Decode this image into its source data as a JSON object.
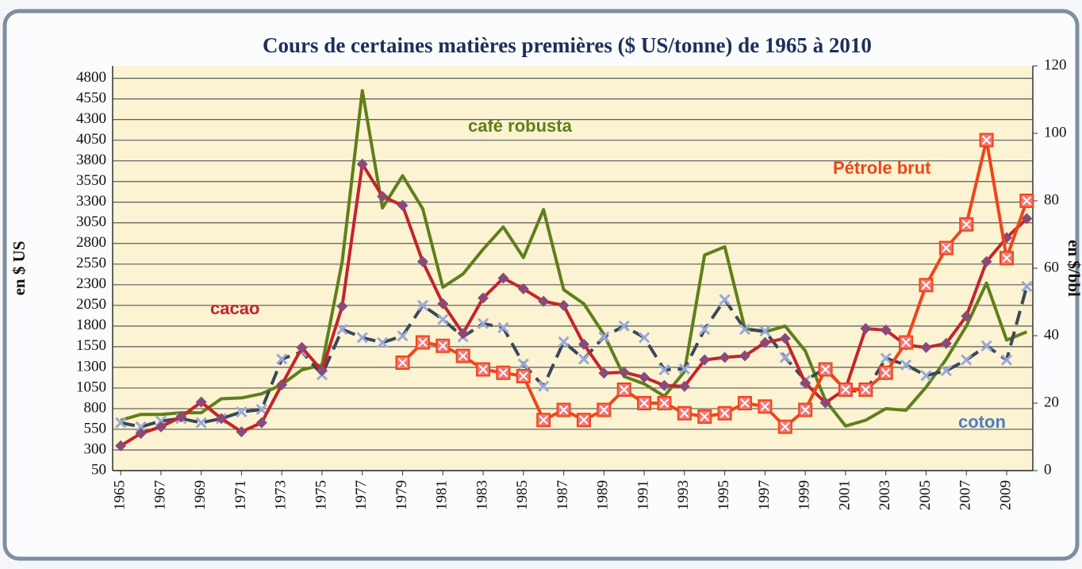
{
  "chart_data": {
    "type": "line",
    "title": "Cours de certaines matières premières ($ US/tonne) de 1965 à 2010",
    "y_label": "en $ US",
    "y2_label": "en $/bbl",
    "x": [
      1965,
      1966,
      1967,
      1968,
      1969,
      1970,
      1971,
      1972,
      1973,
      1974,
      1975,
      1976,
      1977,
      1978,
      1979,
      1980,
      1981,
      1982,
      1983,
      1984,
      1985,
      1986,
      1987,
      1988,
      1989,
      1990,
      1991,
      1992,
      1993,
      1994,
      1995,
      1996,
      1997,
      1998,
      1999,
      2000,
      2001,
      2002,
      2003,
      2004,
      2005,
      2006,
      2007,
      2008,
      2009,
      2010
    ],
    "xlim": [
      1964.6,
      2010.3
    ],
    "xticks": [
      1965,
      1967,
      1969,
      1971,
      1973,
      1975,
      1977,
      1979,
      1981,
      1983,
      1985,
      1987,
      1989,
      1991,
      1993,
      1995,
      1997,
      1999,
      2001,
      2003,
      2005,
      2007,
      2009
    ],
    "ylim": [
      50,
      4950
    ],
    "yticks": [
      50,
      300,
      550,
      800,
      1050,
      1300,
      1550,
      1800,
      2050,
      2300,
      2550,
      2800,
      3050,
      3300,
      3550,
      3800,
      4050,
      4300,
      4550,
      4800
    ],
    "y2lim": [
      0,
      120
    ],
    "y2ticks": [
      0,
      20,
      40,
      60,
      80,
      100,
      120
    ],
    "grid": true,
    "series": [
      {
        "name": "café robusta",
        "color": "#5f7f1a",
        "marker": "none",
        "linestyle": "solid",
        "values": [
          660,
          730,
          730,
          750,
          750,
          920,
          930,
          980,
          1090,
          1270,
          1330,
          2580,
          4650,
          3230,
          3620,
          3220,
          2270,
          2430,
          2730,
          3000,
          2630,
          3210,
          2240,
          2070,
          1700,
          1190,
          1100,
          950,
          1250,
          2660,
          2760,
          1770,
          1730,
          1800,
          1500,
          900,
          590,
          660,
          800,
          780,
          1060,
          1400,
          1800,
          2320,
          1630,
          1730
        ]
      },
      {
        "name": "coton",
        "color": "#3a4858",
        "marker": "x",
        "marker_color": "#9aa8d8",
        "linestyle": "dashed",
        "label_color": "#4f7cc2",
        "values": [
          630,
          580,
          650,
          680,
          630,
          680,
          760,
          790,
          1400,
          1490,
          1210,
          1760,
          1660,
          1600,
          1680,
          2050,
          1880,
          1670,
          1830,
          1780,
          1340,
          1070,
          1610,
          1400,
          1670,
          1800,
          1660,
          1270,
          1280,
          1760,
          2120,
          1760,
          1740,
          1420,
          1140,
          1290,
          1020,
          1010,
          1410,
          1330,
          1200,
          1260,
          1390,
          1560,
          1390,
          2280
        ]
      },
      {
        "name": "cacao",
        "color": "#c4242a",
        "marker": "diamond",
        "marker_color": "#8a4a78",
        "linestyle": "solid",
        "values": [
          350,
          500,
          580,
          700,
          880,
          680,
          520,
          630,
          1090,
          1540,
          1260,
          2040,
          3760,
          3370,
          3260,
          2580,
          2070,
          1710,
          2140,
          2380,
          2250,
          2100,
          2050,
          1580,
          1230,
          1240,
          1180,
          1080,
          1070,
          1390,
          1420,
          1440,
          1600,
          1650,
          1110,
          870,
          1040,
          1770,
          1750,
          1570,
          1540,
          1590,
          1920,
          2580,
          2870,
          3100
        ]
      },
      {
        "name": "Pétrole brut",
        "color": "#f0451a",
        "marker": "square-x",
        "marker_color": "#f07878",
        "linestyle": "solid",
        "axis": "y2",
        "values": [
          null,
          null,
          null,
          null,
          null,
          null,
          null,
          null,
          null,
          null,
          null,
          null,
          null,
          null,
          32,
          38,
          37,
          34,
          30,
          29,
          28,
          15,
          18,
          15,
          18,
          24,
          20,
          20,
          17,
          16,
          17,
          20,
          19,
          13,
          18,
          30,
          24,
          24,
          29,
          38,
          55,
          66,
          73,
          98,
          63,
          80
        ]
      }
    ]
  }
}
